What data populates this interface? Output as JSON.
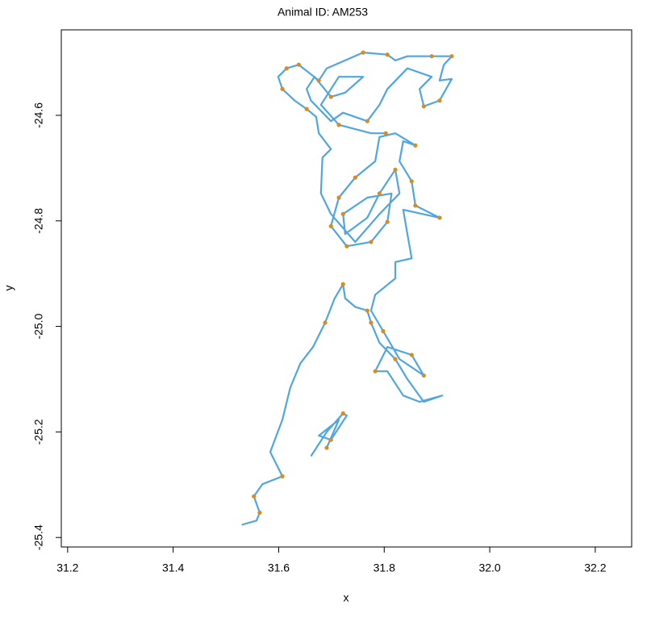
{
  "chart_data": {
    "type": "line",
    "title": "Animal ID: AM253",
    "xlabel": "x",
    "ylabel": "y",
    "xlim": [
      31.188,
      32.269
    ],
    "ylim": [
      -25.418,
      -24.438
    ],
    "xticks": [
      31.2,
      31.4,
      31.6,
      31.8,
      {
        "value": 32,
        "label": "32.0"
      },
      32.2
    ],
    "yticks": [
      -24.6,
      -24.8,
      {
        "value": -25,
        "label": "-25.0"
      },
      -25.2,
      -25.4
    ],
    "series": [
      {
        "color": "#4fa6e0",
        "style": "lines",
        "x": [
          31.53,
          31.558,
          31.564,
          31.553,
          31.569,
          31.607,
          31.584,
          31.607,
          31.622,
          31.641,
          31.665,
          31.688,
          31.706,
          31.722,
          31.726,
          31.745,
          31.768,
          31.775,
          31.791,
          31.821,
          31.844,
          31.875,
          31.91,
          31.867,
          31.836,
          31.806,
          31.783,
          31.806,
          31.852,
          31.875,
          31.829,
          31.798,
          31.775,
          31.783,
          31.821,
          31.821,
          31.852,
          31.844,
          31.836,
          31.905,
          31.859,
          31.852,
          31.829,
          31.836,
          31.859,
          31.821,
          31.791,
          31.783,
          31.745,
          31.714,
          31.699,
          31.729,
          31.775,
          31.806,
          31.814,
          31.768,
          31.722,
          31.726,
          31.768,
          31.791,
          31.821,
          31.829,
          31.791,
          31.745,
          31.699,
          31.68,
          31.683,
          31.699,
          31.676,
          31.671,
          31.653,
          31.63,
          31.607,
          31.599,
          31.615,
          31.638,
          31.676,
          31.691,
          31.714,
          31.76,
          31.806,
          31.821,
          31.844,
          31.89,
          31.928,
          31.913,
          31.905,
          31.928,
          31.905,
          31.875,
          31.867,
          31.89,
          31.844,
          31.806,
          31.791,
          31.768,
          31.722,
          31.699,
          31.661,
          31.653,
          31.668,
          31.699,
          31.726,
          31.76,
          31.714,
          31.68,
          31.714,
          31.775,
          31.803,
          null,
          31.661,
          31.691,
          31.722,
          31.729,
          31.699,
          31.676,
          31.714,
          31.691
        ],
        "values": [
          -25.376,
          -25.368,
          -25.353,
          -25.322,
          -25.299,
          -25.284,
          -25.238,
          -25.177,
          -25.116,
          -25.07,
          -25.039,
          -24.993,
          -24.947,
          -24.92,
          -24.947,
          -24.963,
          -24.97,
          -24.993,
          -25.031,
          -25.062,
          -25.1,
          -25.143,
          -25.131,
          -25.143,
          -25.131,
          -25.085,
          -25.085,
          -25.039,
          -25.054,
          -25.093,
          -25.062,
          -25.009,
          -24.97,
          -24.94,
          -24.909,
          -24.878,
          -24.871,
          -24.825,
          -24.779,
          -24.794,
          -24.771,
          -24.725,
          -24.687,
          -24.649,
          -24.657,
          -24.634,
          -24.641,
          -24.687,
          -24.718,
          -24.756,
          -24.81,
          -24.848,
          -24.84,
          -24.802,
          -24.748,
          -24.756,
          -24.787,
          -24.825,
          -24.794,
          -24.748,
          -24.703,
          -24.748,
          -24.787,
          -24.84,
          -24.787,
          -24.748,
          -24.68,
          -24.664,
          -24.634,
          -24.603,
          -24.588,
          -24.572,
          -24.55,
          -24.527,
          -24.511,
          -24.504,
          -24.534,
          -24.511,
          -24.501,
          -24.481,
          -24.485,
          -24.496,
          -24.488,
          -24.488,
          -24.488,
          -24.504,
          -24.534,
          -24.531,
          -24.572,
          -24.583,
          -24.55,
          -24.527,
          -24.511,
          -24.55,
          -24.58,
          -24.611,
          -24.595,
          -24.611,
          -24.572,
          -24.55,
          -24.527,
          -24.565,
          -24.557,
          -24.527,
          -24.527,
          -24.58,
          -24.618,
          -24.634,
          -24.634,
          null,
          -25.246,
          -25.2,
          -25.165,
          -25.169,
          -25.215,
          -25.207,
          -25.177,
          -25.23
        ]
      },
      {
        "color": "#d98c1f",
        "style": "points",
        "x": [
          31.607,
          31.615,
          31.638,
          31.653,
          31.676,
          31.699,
          31.714,
          31.76,
          31.806,
          31.89,
          31.928,
          31.905,
          31.875,
          31.768,
          31.803,
          31.859,
          31.745,
          31.714,
          31.699,
          31.729,
          31.775,
          31.806,
          31.905,
          31.859,
          31.791,
          31.722,
          31.852,
          31.821,
          31.722,
          31.768,
          31.775,
          31.798,
          31.821,
          31.875,
          31.852,
          31.783,
          31.699,
          31.722,
          31.691,
          31.607,
          31.564,
          31.553,
          31.688
        ],
        "values": [
          -24.55,
          -24.511,
          -24.504,
          -24.588,
          -24.534,
          -24.565,
          -24.618,
          -24.481,
          -24.485,
          -24.488,
          -24.488,
          -24.572,
          -24.583,
          -24.611,
          -24.634,
          -24.657,
          -24.718,
          -24.756,
          -24.81,
          -24.848,
          -24.84,
          -24.802,
          -24.794,
          -24.771,
          -24.748,
          -24.787,
          -24.725,
          -24.703,
          -24.92,
          -24.97,
          -24.993,
          -25.009,
          -25.062,
          -25.093,
          -25.054,
          -25.085,
          -25.215,
          -25.165,
          -25.23,
          -25.284,
          -25.353,
          -25.322,
          -24.993
        ]
      }
    ]
  }
}
